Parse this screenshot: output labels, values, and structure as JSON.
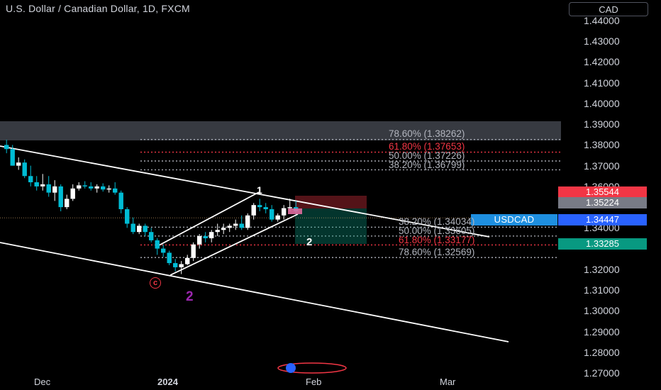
{
  "header": {
    "title": "U.S. Dollar / Canadian Dollar, 1D, FXCM",
    "currency_button": "CAD"
  },
  "price_axis": {
    "ticks": [
      "1.44000",
      "1.43000",
      "1.42000",
      "1.41000",
      "1.40000",
      "1.39000",
      "1.38000",
      "1.37000",
      "1.36000",
      "1.34000",
      "1.32000",
      "1.31000",
      "1.30000",
      "1.29000",
      "1.28000",
      "1.27000"
    ],
    "tick_values": [
      1.44,
      1.43,
      1.42,
      1.41,
      1.4,
      1.39,
      1.38,
      1.37,
      1.36,
      1.34,
      1.32,
      1.31,
      1.3,
      1.29,
      1.28,
      1.27
    ]
  },
  "time_axis": {
    "labels": [
      {
        "text": "Dec",
        "bold": false
      },
      {
        "text": "2024",
        "bold": true
      },
      {
        "text": "Feb",
        "bold": false
      },
      {
        "text": "Mar",
        "bold": false
      }
    ]
  },
  "price_tags": [
    {
      "text": "1.35544",
      "color": "#f23645"
    },
    {
      "text": "1.35224",
      "color": "#787b86"
    },
    {
      "text": "1.34447",
      "color": "#2962ff"
    },
    {
      "text": "1.33285",
      "color": "#089981"
    }
  ],
  "symbol_tag": "USDCAD",
  "fib_levels": {
    "upper": [
      {
        "label": "78.60% (1.38262)",
        "color": "#b2b5be",
        "price": 1.38262
      },
      {
        "label": "61.80% (1.37653)",
        "color": "#f23645",
        "price": 1.37653
      },
      {
        "label": "50.00% (1.37226)",
        "color": "#b2b5be",
        "price": 1.37226
      },
      {
        "label": "38.20% (1.36799)",
        "color": "#b2b5be",
        "price": 1.36799
      }
    ],
    "lower": [
      {
        "label": "38.20% (1.34034)",
        "color": "#b2b5be",
        "price": 1.34034
      },
      {
        "label": "50.00% (1.33605)",
        "color": "#b2b5be",
        "price": 1.33605
      },
      {
        "label": "61.80% (1.33177)",
        "color": "#f23645",
        "price": 1.33177
      },
      {
        "label": "78.60% (1.32569)",
        "color": "#b2b5be",
        "price": 1.32569
      }
    ]
  },
  "wave_labels": [
    {
      "text": "1",
      "color": "#ffffff"
    },
    {
      "text": "2",
      "color": "#ffffff"
    },
    {
      "text": "c",
      "color": "#f23645"
    },
    {
      "text": "2",
      "color": "#9c27b0"
    }
  ],
  "colors": {
    "up": "#ffffff",
    "down": "#00bcd4",
    "background": "#000000"
  },
  "chart_data": {
    "type": "candlestick",
    "title": "U.S. Dollar / Canadian Dollar, 1D, FXCM",
    "ylim": [
      1.265,
      1.445
    ],
    "x_labels": [
      "Dec",
      "2024",
      "Feb",
      "Mar"
    ],
    "candles": [
      {
        "o": 1.38,
        "h": 1.3825,
        "l": 1.376,
        "c": 1.378
      },
      {
        "o": 1.378,
        "h": 1.38,
        "l": 1.37,
        "c": 1.37
      },
      {
        "o": 1.37,
        "h": 1.374,
        "l": 1.368,
        "c": 1.3715
      },
      {
        "o": 1.3715,
        "h": 1.373,
        "l": 1.364,
        "c": 1.365
      },
      {
        "o": 1.365,
        "h": 1.37,
        "l": 1.36,
        "c": 1.362
      },
      {
        "o": 1.362,
        "h": 1.365,
        "l": 1.358,
        "c": 1.36
      },
      {
        "o": 1.36,
        "h": 1.366,
        "l": 1.358,
        "c": 1.361
      },
      {
        "o": 1.361,
        "h": 1.365,
        "l": 1.355,
        "c": 1.357
      },
      {
        "o": 1.357,
        "h": 1.363,
        "l": 1.353,
        "c": 1.36
      },
      {
        "o": 1.36,
        "h": 1.361,
        "l": 1.348,
        "c": 1.35
      },
      {
        "o": 1.35,
        "h": 1.356,
        "l": 1.349,
        "c": 1.354
      },
      {
        "o": 1.354,
        "h": 1.361,
        "l": 1.353,
        "c": 1.359
      },
      {
        "o": 1.359,
        "h": 1.362,
        "l": 1.358,
        "c": 1.3605
      },
      {
        "o": 1.3605,
        "h": 1.3625,
        "l": 1.359,
        "c": 1.36
      },
      {
        "o": 1.36,
        "h": 1.362,
        "l": 1.358,
        "c": 1.359
      },
      {
        "o": 1.359,
        "h": 1.361,
        "l": 1.357,
        "c": 1.36
      },
      {
        "o": 1.36,
        "h": 1.3615,
        "l": 1.3575,
        "c": 1.3585
      },
      {
        "o": 1.3585,
        "h": 1.3605,
        "l": 1.357,
        "c": 1.359
      },
      {
        "o": 1.359,
        "h": 1.362,
        "l": 1.356,
        "c": 1.357
      },
      {
        "o": 1.357,
        "h": 1.358,
        "l": 1.347,
        "c": 1.349
      },
      {
        "o": 1.349,
        "h": 1.35,
        "l": 1.34,
        "c": 1.342
      },
      {
        "o": 1.342,
        "h": 1.345,
        "l": 1.337,
        "c": 1.338
      },
      {
        "o": 1.338,
        "h": 1.342,
        "l": 1.337,
        "c": 1.341
      },
      {
        "o": 1.341,
        "h": 1.342,
        "l": 1.336,
        "c": 1.338
      },
      {
        "o": 1.338,
        "h": 1.34,
        "l": 1.333,
        "c": 1.334
      },
      {
        "o": 1.334,
        "h": 1.335,
        "l": 1.327,
        "c": 1.33
      },
      {
        "o": 1.33,
        "h": 1.332,
        "l": 1.326,
        "c": 1.328
      },
      {
        "o": 1.328,
        "h": 1.329,
        "l": 1.322,
        "c": 1.323
      },
      {
        "o": 1.323,
        "h": 1.325,
        "l": 1.319,
        "c": 1.321
      },
      {
        "o": 1.321,
        "h": 1.324,
        "l": 1.3177,
        "c": 1.3225
      },
      {
        "o": 1.3225,
        "h": 1.327,
        "l": 1.322,
        "c": 1.3255
      },
      {
        "o": 1.3255,
        "h": 1.333,
        "l": 1.324,
        "c": 1.332
      },
      {
        "o": 1.332,
        "h": 1.337,
        "l": 1.33,
        "c": 1.336
      },
      {
        "o": 1.336,
        "h": 1.338,
        "l": 1.333,
        "c": 1.335
      },
      {
        "o": 1.335,
        "h": 1.339,
        "l": 1.333,
        "c": 1.338
      },
      {
        "o": 1.338,
        "h": 1.342,
        "l": 1.336,
        "c": 1.339
      },
      {
        "o": 1.339,
        "h": 1.342,
        "l": 1.337,
        "c": 1.34
      },
      {
        "o": 1.34,
        "h": 1.342,
        "l": 1.338,
        "c": 1.341
      },
      {
        "o": 1.341,
        "h": 1.344,
        "l": 1.339,
        "c": 1.342
      },
      {
        "o": 1.342,
        "h": 1.346,
        "l": 1.339,
        "c": 1.34
      },
      {
        "o": 1.34,
        "h": 1.347,
        "l": 1.339,
        "c": 1.346
      },
      {
        "o": 1.346,
        "h": 1.352,
        "l": 1.344,
        "c": 1.351
      },
      {
        "o": 1.351,
        "h": 1.354,
        "l": 1.348,
        "c": 1.35
      },
      {
        "o": 1.35,
        "h": 1.352,
        "l": 1.347,
        "c": 1.349
      },
      {
        "o": 1.349,
        "h": 1.351,
        "l": 1.343,
        "c": 1.344
      },
      {
        "o": 1.344,
        "h": 1.347,
        "l": 1.343,
        "c": 1.346
      },
      {
        "o": 1.346,
        "h": 1.351,
        "l": 1.344,
        "c": 1.3495
      },
      {
        "o": 1.3495,
        "h": 1.3541,
        "l": 1.348,
        "c": 1.35
      },
      {
        "o": 1.35,
        "h": 1.353,
        "l": 1.347,
        "c": 1.348
      }
    ]
  }
}
